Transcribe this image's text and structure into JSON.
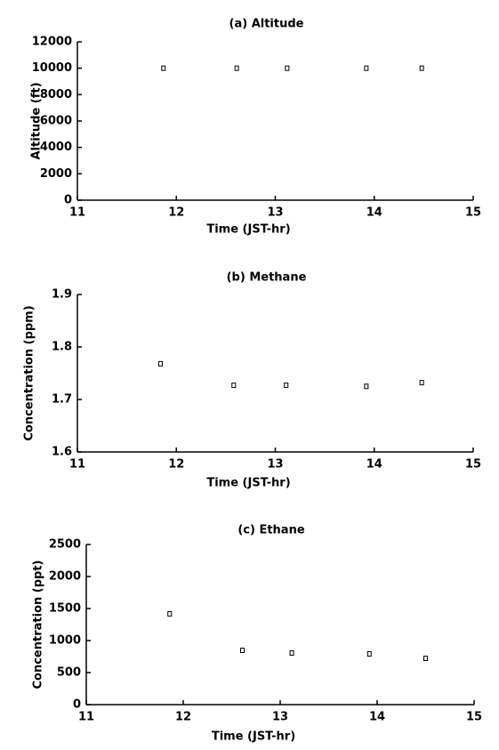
{
  "chart_data": [
    {
      "type": "scatter",
      "title": "(a) Altitude",
      "xlabel": "Time (JST-hr)",
      "ylabel": "Altitude (ft)",
      "x": [
        11.87,
        12.61,
        13.12,
        13.92,
        14.48
      ],
      "values": [
        10000,
        10000,
        10000,
        10000,
        10000
      ],
      "xlim": [
        11,
        15
      ],
      "xticks": [
        11,
        12,
        13,
        14,
        15
      ],
      "ylim": [
        0,
        12000
      ],
      "yticks": [
        0,
        2000,
        4000,
        6000,
        8000,
        10000,
        12000
      ],
      "color": "#000000"
    },
    {
      "type": "scatter",
      "title": "(b) Methane",
      "xlabel": "Time (JST-hr)",
      "ylabel": "Concentration (ppm)",
      "x": [
        11.84,
        12.58,
        13.11,
        13.92,
        14.48
      ],
      "values": [
        1.768,
        1.727,
        1.727,
        1.725,
        1.732
      ],
      "xlim": [
        11,
        15
      ],
      "xticks": [
        11,
        12,
        13,
        14,
        15
      ],
      "ylim": [
        1.6,
        1.9
      ],
      "yticks": [
        1.6,
        1.7,
        1.8,
        1.9
      ],
      "color": "#000000"
    },
    {
      "type": "scatter",
      "title": "(c) Ethane",
      "xlabel": "Time (JST-hr)",
      "ylabel": "Concentration (ppt)",
      "x": [
        11.86,
        12.61,
        13.12,
        13.92,
        14.5
      ],
      "values": [
        1417,
        847,
        806,
        792,
        722
      ],
      "xlim": [
        11,
        15
      ],
      "xticks": [
        11,
        12,
        13,
        14,
        15
      ],
      "ylim": [
        0,
        2500
      ],
      "yticks": [
        0,
        500,
        1000,
        1500,
        2000,
        2500
      ],
      "color": "#000000"
    }
  ]
}
